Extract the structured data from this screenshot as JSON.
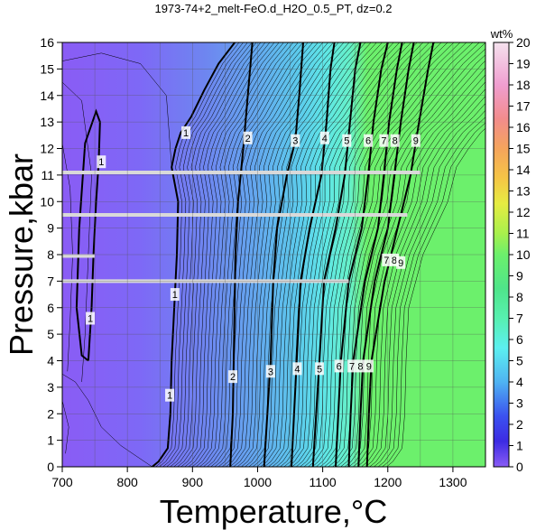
{
  "chart_data": {
    "type": "heatmap",
    "title": "1973-74+2_melt-FeO.d_H2O_0.5_PT, dz=0.2",
    "xlabel": "Temperature,°C",
    "ylabel": "Pressure,kbar",
    "xlim": [
      700,
      1350
    ],
    "ylim": [
      0,
      16
    ],
    "xticks": [
      700,
      800,
      900,
      1000,
      1100,
      1200,
      1300
    ],
    "yticks": [
      0,
      1,
      2,
      3,
      4,
      5,
      6,
      7,
      8,
      9,
      10,
      11,
      12,
      13,
      14,
      15,
      16
    ],
    "grid": true,
    "colorbar": {
      "label": "wt%",
      "min": 0,
      "max": 20,
      "ticks": [
        0,
        1,
        2,
        3,
        4,
        5,
        6,
        7,
        8,
        9,
        10,
        11,
        12,
        13,
        14,
        15,
        16,
        17,
        18,
        19,
        20
      ]
    },
    "contour_labels": [
      {
        "label": "1",
        "x": 890,
        "y": 12.6
      },
      {
        "label": "1",
        "x": 760,
        "y": 11.5
      },
      {
        "label": "1",
        "x": 873,
        "y": 6.5
      },
      {
        "label": "1",
        "x": 743,
        "y": 5.6
      },
      {
        "label": "1",
        "x": 865,
        "y": 2.7
      },
      {
        "label": "2",
        "x": 985,
        "y": 12.4
      },
      {
        "label": "2",
        "x": 962,
        "y": 3.4
      },
      {
        "label": "3",
        "x": 1058,
        "y": 12.3
      },
      {
        "label": "3",
        "x": 1020,
        "y": 3.6
      },
      {
        "label": "4",
        "x": 1103,
        "y": 12.4
      },
      {
        "label": "4",
        "x": 1061,
        "y": 3.7
      },
      {
        "label": "5",
        "x": 1137,
        "y": 12.3
      },
      {
        "label": "5",
        "x": 1095,
        "y": 3.7
      },
      {
        "label": "6",
        "x": 1170,
        "y": 12.3
      },
      {
        "label": "6",
        "x": 1125,
        "y": 3.8
      },
      {
        "label": "7",
        "x": 1194,
        "y": 12.3
      },
      {
        "label": "7",
        "x": 1145,
        "y": 3.8
      },
      {
        "label": "7",
        "x": 1198,
        "y": 7.8
      },
      {
        "label": "8",
        "x": 1211,
        "y": 12.3
      },
      {
        "label": "8",
        "x": 1158,
        "y": 3.8
      },
      {
        "label": "8",
        "x": 1210,
        "y": 7.8
      },
      {
        "label": "9",
        "x": 1243,
        "y": 12.3
      },
      {
        "label": "9",
        "x": 1171,
        "y": 3.8
      },
      {
        "label": "9",
        "x": 1220,
        "y": 7.7
      }
    ]
  },
  "colors": {
    "low": "#8a5cf5",
    "high": "#6cf06c",
    "contour": "#000000",
    "gap_band": "#d9d9d9"
  }
}
